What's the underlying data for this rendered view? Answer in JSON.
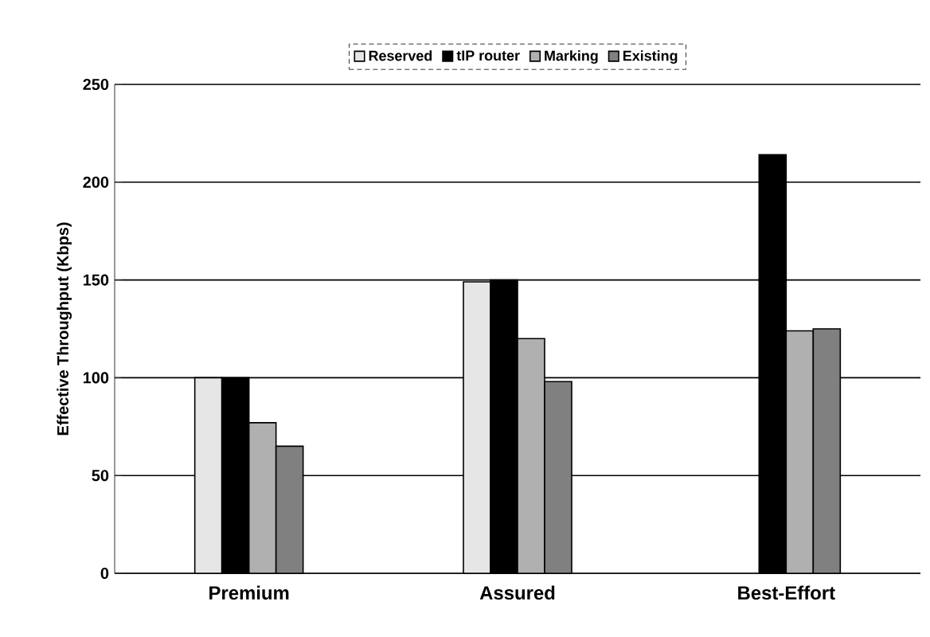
{
  "chart_data": {
    "type": "bar",
    "ylabel": "Effective Throughput (Kbps)",
    "categories": [
      "Premium",
      "Assured",
      "Best-Effort"
    ],
    "series": [
      {
        "name": "Reserved",
        "color": "#e6e6e6",
        "values": [
          100,
          149,
          null
        ]
      },
      {
        "name": "tIP router",
        "color": "#000000",
        "values": [
          100,
          150,
          214
        ]
      },
      {
        "name": "Marking",
        "color": "#b0b0b0",
        "values": [
          77,
          120,
          124
        ]
      },
      {
        "name": "Existing",
        "color": "#808080",
        "values": [
          65,
          98,
          125
        ]
      }
    ],
    "ylim": [
      0,
      250
    ],
    "yticks": [
      0,
      50,
      100,
      150,
      200,
      250
    ],
    "grid": "y",
    "legend": "top"
  }
}
